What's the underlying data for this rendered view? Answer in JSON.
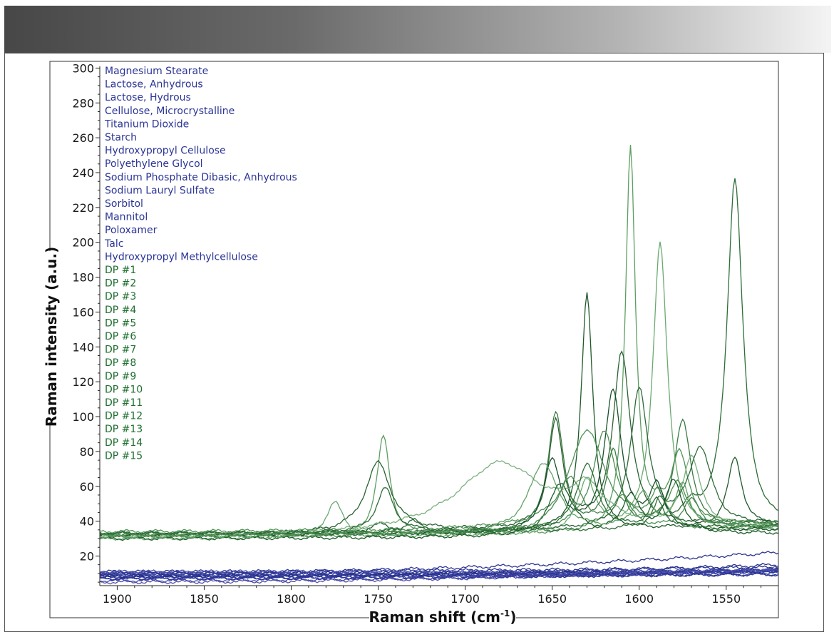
{
  "chart_data": {
    "type": "line",
    "title": "",
    "xlabel": "Raman shift (cm",
    "xlabel_superscript": "-1",
    "xlabel_suffix": ")",
    "ylabel": "Raman intensity (a.u.)",
    "xlim": [
      1910,
      1520
    ],
    "ylim": [
      3,
      301
    ],
    "x_reversed": true,
    "x_ticks": [
      1900,
      1850,
      1800,
      1750,
      1700,
      1650,
      1600,
      1550
    ],
    "y_ticks": [
      20,
      40,
      60,
      80,
      100,
      120,
      140,
      160,
      180,
      200,
      220,
      240,
      260,
      280,
      300
    ],
    "grid": false,
    "legend_placement": "top-left",
    "colors": {
      "excipient": "#2b3596",
      "dp": "#1e6e2e"
    },
    "series": [
      {
        "name": "Magnesium Stearate",
        "group": "excipient",
        "color": "#27318f",
        "base": 8,
        "slope": 1.5,
        "peaks": []
      },
      {
        "name": "Lactose, Anhydrous",
        "group": "excipient",
        "color": "#3b43a5",
        "base": 9,
        "slope": 2.0,
        "peaks": []
      },
      {
        "name": "Lactose, Hydrous",
        "group": "excipient",
        "color": "#2a2f80",
        "base": 10,
        "slope": 1.0,
        "peaks": []
      },
      {
        "name": "Cellulose, Microcrystalline",
        "group": "excipient",
        "color": "#4a52b3",
        "base": 7,
        "slope": 5.0,
        "peaks": []
      },
      {
        "name": "Titanium Dioxide",
        "group": "excipient",
        "color": "#343b9a",
        "base": 9,
        "slope": 0.5,
        "peaks": []
      },
      {
        "name": "Starch",
        "group": "excipient",
        "color": "#2e3690",
        "base": 10,
        "slope": 12.0,
        "peaks": []
      },
      {
        "name": "Hydroxypropyl Cellulose",
        "group": "excipient",
        "color": "#5a4fa8",
        "base": 5,
        "slope": 8.0,
        "peaks": []
      },
      {
        "name": "Polyethylene Glycol",
        "group": "excipient",
        "color": "#3a3f9e",
        "base": 8,
        "slope": 4.0,
        "peaks": []
      },
      {
        "name": "Sodium Phosphate Dibasic, Anhydrous",
        "group": "excipient",
        "color": "#2b3596",
        "base": 11,
        "slope": 2.5,
        "peaks": []
      },
      {
        "name": "Sodium Lauryl Sulfate",
        "group": "excipient",
        "color": "#4148a8",
        "base": 6,
        "slope": 6.0,
        "peaks": []
      },
      {
        "name": "Sorbitol",
        "group": "excipient",
        "color": "#2c348e",
        "base": 9,
        "slope": 3.0,
        "peaks": []
      },
      {
        "name": "Mannitol",
        "group": "excipient",
        "color": "#3c45a4",
        "base": 10,
        "slope": 1.5,
        "peaks": []
      },
      {
        "name": "Poloxamer",
        "group": "excipient",
        "color": "#25308a",
        "base": 8,
        "slope": 7.0,
        "peaks": []
      },
      {
        "name": "Talc",
        "group": "excipient",
        "color": "#4a50ac",
        "base": 11,
        "slope": 0.8,
        "peaks": []
      },
      {
        "name": "Hydroxypropyl Methylcellulose",
        "group": "excipient",
        "color": "#2b3596",
        "base": 7,
        "slope": 3.5,
        "peaks": []
      },
      {
        "name": "DP #1",
        "group": "dp",
        "color": "#1f5a2a",
        "base": 32,
        "slope": 5,
        "peaks": [
          [
            1630,
            136,
            4
          ],
          [
            1545,
            40,
            5
          ],
          [
            1748,
            6,
            6
          ]
        ]
      },
      {
        "name": "DP #2",
        "group": "dp",
        "color": "#5c9e62",
        "base": 31,
        "slope": 4,
        "peaks": [
          [
            1605,
            222,
            3.5
          ],
          [
            1747,
            57,
            4.5
          ],
          [
            1588,
            16,
            5
          ]
        ]
      },
      {
        "name": "DP #3",
        "group": "dp",
        "color": "#2e6d37",
        "base": 33,
        "slope": 3,
        "peaks": [
          [
            1545,
            201,
            5.5
          ],
          [
            1588,
            15,
            4
          ],
          [
            1570,
            10,
            6
          ]
        ]
      },
      {
        "name": "DP #4",
        "group": "dp",
        "color": "#6aa96f",
        "base": 30,
        "slope": 6,
        "peaks": [
          [
            1588,
            165,
            5
          ],
          [
            1630,
            30,
            6
          ],
          [
            1775,
            20,
            6
          ]
        ]
      },
      {
        "name": "DP #5",
        "group": "dp",
        "color": "#2a6232",
        "base": 32,
        "slope": 8,
        "peaks": [
          [
            1610,
            100,
            6
          ],
          [
            1648,
            60,
            5
          ],
          [
            1750,
            40,
            9
          ]
        ]
      },
      {
        "name": "DP #6",
        "group": "dp",
        "color": "#3b7a43",
        "base": 31,
        "slope": 5,
        "peaks": [
          [
            1648,
            68,
            5.5
          ],
          [
            1615,
            45,
            5
          ],
          [
            1575,
            62,
            6
          ]
        ]
      },
      {
        "name": "DP #7",
        "group": "dp",
        "color": "#4f9355",
        "base": 34,
        "slope": 4,
        "peaks": [
          [
            1630,
            56,
            12
          ],
          [
            1577,
            41,
            6
          ],
          [
            1590,
            10,
            4
          ]
        ]
      },
      {
        "name": "DP #8",
        "group": "dp",
        "color": "#18502a",
        "base": 32,
        "slope": 3,
        "peaks": [
          [
            1615,
            80,
            6
          ],
          [
            1650,
            40,
            6
          ],
          [
            1590,
            25,
            5
          ]
        ]
      },
      {
        "name": "DP #9",
        "group": "dp",
        "color": "#7bb07f",
        "base": 31,
        "slope": 5,
        "peaks": [
          [
            1680,
            40,
            30
          ],
          [
            1630,
            20,
            12
          ],
          [
            1570,
            40,
            6
          ]
        ]
      },
      {
        "name": "DP #10",
        "group": "dp",
        "color": "#2f6b3a",
        "base": 33,
        "slope": 4,
        "peaks": [
          [
            1600,
            80,
            6
          ],
          [
            1565,
            45,
            8
          ],
          [
            1746,
            25,
            6
          ]
        ]
      },
      {
        "name": "DP #11",
        "group": "dp",
        "color": "#4d8f53",
        "base": 32,
        "slope": 7,
        "peaks": [
          [
            1620,
            55,
            8
          ],
          [
            1578,
            25,
            6
          ]
        ]
      },
      {
        "name": "DP #12",
        "group": "dp",
        "color": "#1c5b27",
        "base": 30,
        "slope": 3,
        "peaks": [
          [
            1645,
            30,
            8
          ],
          [
            1605,
            22,
            6
          ],
          [
            1580,
            30,
            6
          ]
        ]
      },
      {
        "name": "DP #13",
        "group": "dp",
        "color": "#61a266",
        "base": 31,
        "slope": 6,
        "peaks": [
          [
            1655,
            40,
            10
          ],
          [
            1598,
            20,
            6
          ],
          [
            1575,
            25,
            5
          ]
        ]
      },
      {
        "name": "DP #14",
        "group": "dp",
        "color": "#2b6e33",
        "base": 33,
        "slope": 4,
        "peaks": [
          [
            1630,
            38,
            7
          ],
          [
            1590,
            16,
            5
          ],
          [
            1730,
            7,
            5
          ]
        ]
      },
      {
        "name": "DP #15",
        "group": "dp",
        "color": "#4a8a4f",
        "base": 32,
        "slope": 5,
        "peaks": [
          [
            1640,
            30,
            9
          ],
          [
            1610,
            18,
            6
          ],
          [
            1570,
            16,
            6
          ]
        ]
      }
    ]
  }
}
